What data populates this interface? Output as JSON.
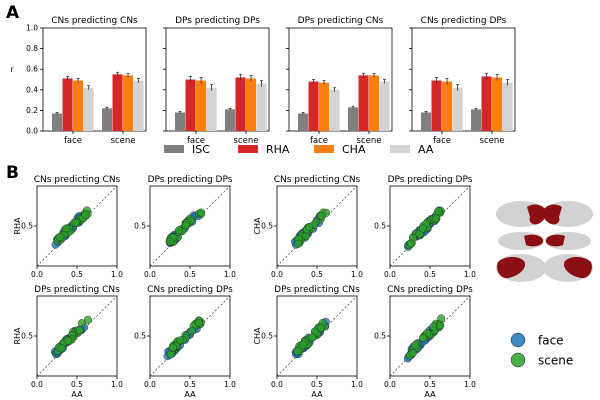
{
  "panel_labels": {
    "a": "A",
    "b": "B"
  },
  "colors": {
    "ISC": "#7f7f7f",
    "RHA": "#d62728",
    "CHA": "#ff7f0e",
    "AA": "#d3d3d3",
    "face": "#1f77b4",
    "scene": "#2ca02c"
  },
  "legend_a": [
    {
      "key": "ISC",
      "label": "ISC"
    },
    {
      "key": "RHA",
      "label": "RHA"
    },
    {
      "key": "CHA",
      "label": "CHA"
    },
    {
      "key": "AA",
      "label": "AA"
    }
  ],
  "legend_b": [
    {
      "key": "face",
      "label": "face"
    },
    {
      "key": "scene",
      "label": "scene"
    }
  ],
  "chart_data": [
    {
      "type": "bar",
      "panel": "A",
      "ylabel": "r",
      "ylim": [
        0,
        1.0
      ],
      "yticks": [
        "0.0",
        "0.2",
        "0.4",
        "0.6",
        "0.8",
        "1.0"
      ],
      "categories": [
        "face",
        "scene"
      ],
      "series_names": [
        "ISC",
        "RHA",
        "CHA",
        "AA"
      ],
      "subplots": [
        {
          "title": "CNs predicting CNs",
          "values": {
            "face": [
              0.17,
              0.51,
              0.49,
              0.42
            ],
            "scene": [
              0.22,
              0.55,
              0.54,
              0.49
            ]
          },
          "errors": [
            0.01,
            0.02,
            0.02,
            0.02
          ]
        },
        {
          "title": "DPs predicting DPs",
          "values": {
            "face": [
              0.18,
              0.5,
              0.49,
              0.42
            ],
            "scene": [
              0.21,
              0.52,
              0.51,
              0.46
            ]
          },
          "errors": [
            0.01,
            0.03,
            0.03,
            0.03
          ]
        },
        {
          "title": "DPs predicting CNs",
          "values": {
            "face": [
              0.17,
              0.48,
              0.47,
              0.4
            ],
            "scene": [
              0.23,
              0.54,
              0.54,
              0.48
            ]
          },
          "errors": [
            0.01,
            0.02,
            0.02,
            0.02
          ]
        },
        {
          "title": "CNs predicting DPs",
          "values": {
            "face": [
              0.18,
              0.49,
              0.48,
              0.42
            ],
            "scene": [
              0.21,
              0.53,
              0.52,
              0.47
            ]
          },
          "errors": [
            0.01,
            0.03,
            0.03,
            0.03
          ]
        }
      ]
    },
    {
      "type": "scatter",
      "panel": "B",
      "xlabel": "AA",
      "xlim": [
        0,
        1.0
      ],
      "ylim": [
        0,
        1.0
      ],
      "xticks": [
        "0.0",
        "0.5",
        "1.0"
      ],
      "yticks": [
        "0.5"
      ],
      "point_groups": [
        "face",
        "scene"
      ],
      "subplots": [
        {
          "title": "CNs predicting CNs",
          "ylabel": "RHA",
          "seed": 11,
          "offset": 0.06
        },
        {
          "title": "DPs predicting DPs",
          "ylabel": "",
          "seed": 23,
          "offset": 0.05
        },
        {
          "title": "CNs predicting CNs",
          "ylabel": "CHA",
          "seed": 37,
          "offset": 0.05
        },
        {
          "title": "DPs predicting DPs",
          "ylabel": "",
          "seed": 41,
          "offset": 0.04
        },
        {
          "title": "DPs predicting CNs",
          "ylabel": "RHA",
          "seed": 53,
          "offset": 0.06
        },
        {
          "title": "CNs predicting DPs",
          "ylabel": "",
          "seed": 67,
          "offset": 0.05
        },
        {
          "title": "DPs predicting CNs",
          "ylabel": "CHA",
          "seed": 79,
          "offset": 0.05
        },
        {
          "title": "CNs predicting DPs",
          "ylabel": "",
          "seed": 97,
          "offset": 0.04
        }
      ]
    }
  ]
}
